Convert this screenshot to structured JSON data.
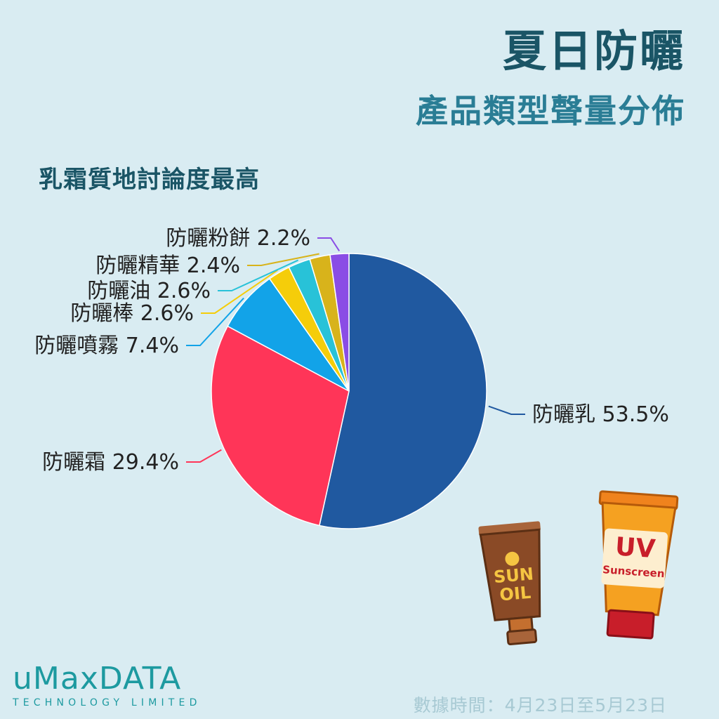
{
  "header": {
    "title": "夏日防曬",
    "subtitle": "產品類型聲量分佈"
  },
  "note": "乳霜質地討論度最高",
  "chart_data": {
    "type": "pie",
    "slices": [
      {
        "label": "防曬乳 53.5%",
        "value": 53.5,
        "color": "#2059a0"
      },
      {
        "label": "防曬霜 29.4%",
        "value": 29.4,
        "color": "#ff3558"
      },
      {
        "label": "防曬噴霧 7.4%",
        "value": 7.4,
        "color": "#12a3e8"
      },
      {
        "label": "防曬棒 2.6%",
        "value": 2.6,
        "color": "#f5cd0a"
      },
      {
        "label": "防曬油 2.6%",
        "value": 2.6,
        "color": "#28c2d8"
      },
      {
        "label": "防曬精華 2.4%",
        "value": 2.4,
        "color": "#d8b31b"
      },
      {
        "label": "防曬粉餅 2.2%",
        "value": 2.2,
        "color": "#8a4de5"
      }
    ]
  },
  "illustration": {
    "sun_oil_text_1": "SUN",
    "sun_oil_text_2": "OIL",
    "uv_text": "UV",
    "sunscreen_text": "Sunscreen"
  },
  "footer": {
    "logo_main": "uMaxDATA",
    "logo_sub": "TECHNOLOGY LIMITED",
    "date_range": "數據時間：4月23日至5月23日"
  }
}
